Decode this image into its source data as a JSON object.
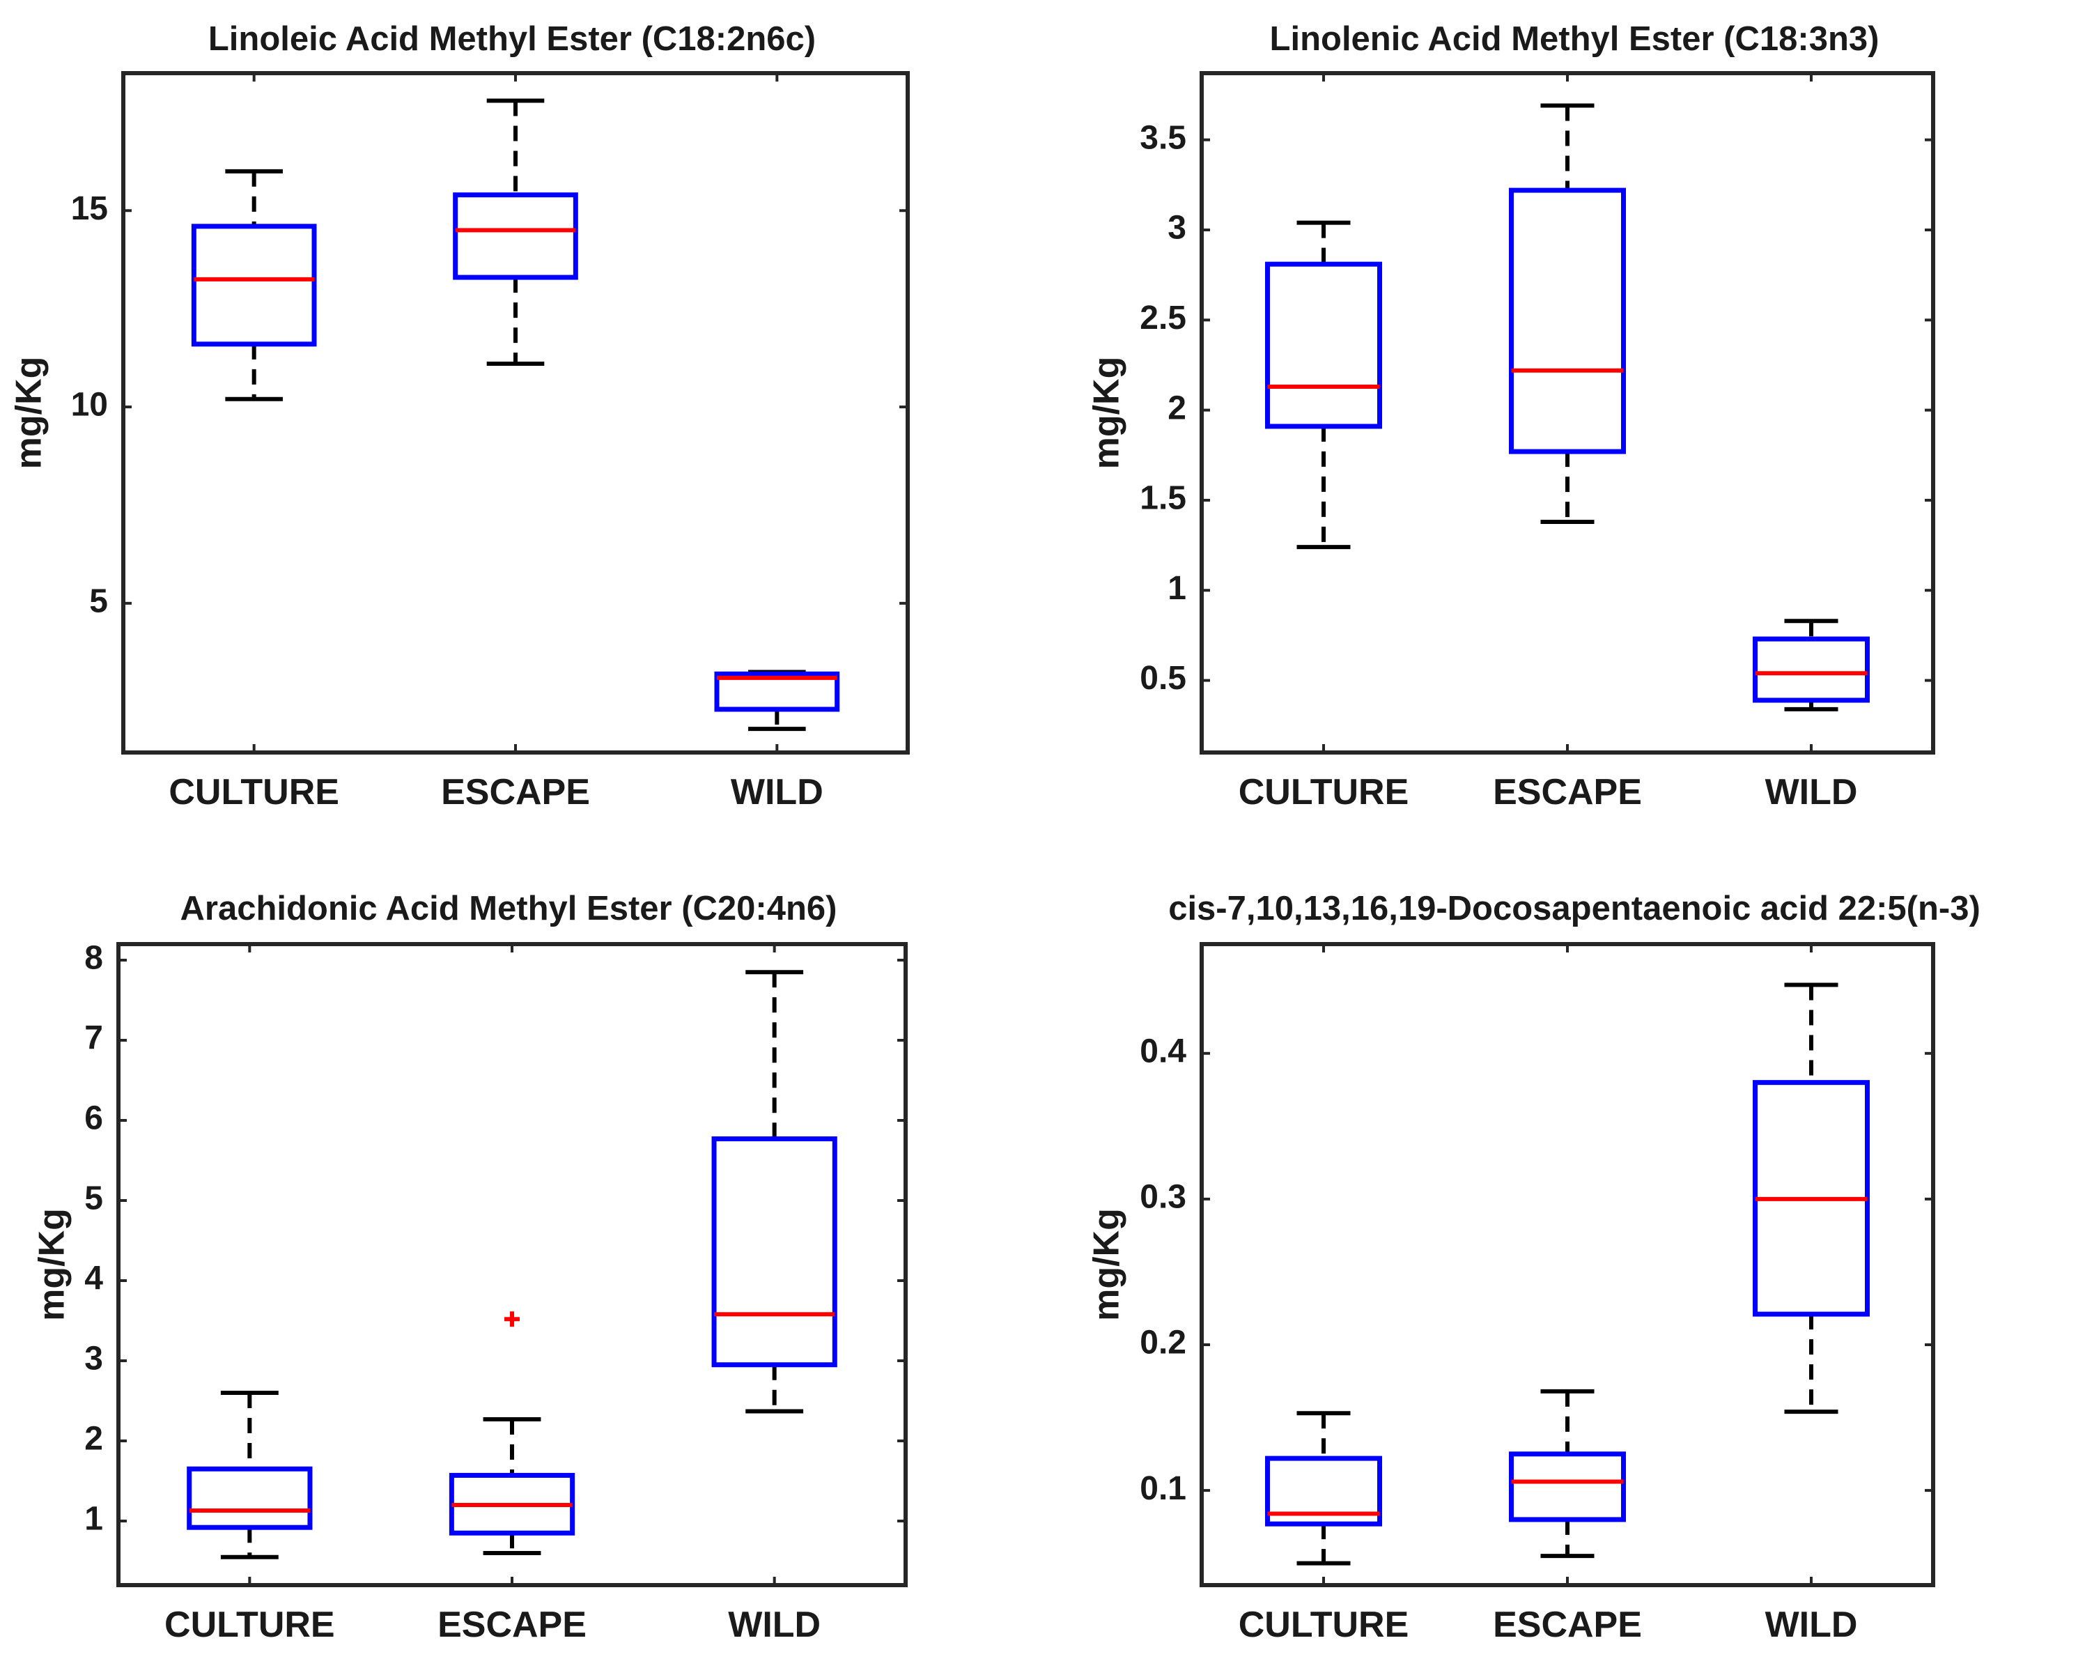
{
  "colors": {
    "box": "#0000ff",
    "median": "#ff0000",
    "whisker": "#000000",
    "axis": "#262626",
    "outlier": "#ff0000"
  },
  "chart_data": [
    {
      "type": "box",
      "title": "Linoleic Acid Methyl Ester (C18:2n6c)",
      "ylabel": "mg/Kg",
      "xlabel": "",
      "ylim": [
        1.2,
        18.5
      ],
      "yticks": [
        5,
        10,
        15
      ],
      "ytick_labels": [
        "5",
        "10",
        "15"
      ],
      "categories": [
        "CULTURE",
        "ESCAPE",
        "WILD"
      ],
      "boxes": [
        {
          "whisker_low": 10.2,
          "q1": 11.6,
          "median": 13.25,
          "q3": 14.6,
          "whisker_high": 16.0,
          "outliers": []
        },
        {
          "whisker_low": 11.1,
          "q1": 13.3,
          "median": 14.5,
          "q3": 15.4,
          "whisker_high": 17.8,
          "outliers": []
        },
        {
          "whisker_low": 1.8,
          "q1": 2.3,
          "median": 3.1,
          "q3": 3.2,
          "whisker_high": 3.25,
          "outliers": []
        }
      ]
    },
    {
      "type": "box",
      "title": "Linolenic Acid Methyl Ester (C18:3n3)",
      "ylabel": "mg/Kg",
      "xlabel": "",
      "ylim": [
        0.1,
        3.87
      ],
      "yticks": [
        0.5,
        1,
        1.5,
        2,
        2.5,
        3,
        3.5
      ],
      "ytick_labels": [
        "0.5",
        "1",
        "1.5",
        "2",
        "2.5",
        "3",
        "3.5"
      ],
      "categories": [
        "CULTURE",
        "ESCAPE",
        "WILD"
      ],
      "boxes": [
        {
          "whisker_low": 1.24,
          "q1": 1.91,
          "median": 2.13,
          "q3": 2.81,
          "whisker_high": 3.04,
          "outliers": []
        },
        {
          "whisker_low": 1.38,
          "q1": 1.77,
          "median": 2.22,
          "q3": 3.22,
          "whisker_high": 3.69,
          "outliers": []
        },
        {
          "whisker_low": 0.34,
          "q1": 0.39,
          "median": 0.54,
          "q3": 0.73,
          "whisker_high": 0.83,
          "outliers": []
        }
      ]
    },
    {
      "type": "box",
      "title": "Arachidonic Acid Methyl Ester (C20:4n6)",
      "ylabel": "mg/Kg",
      "xlabel": "",
      "ylim": [
        0.2,
        8.2
      ],
      "yticks": [
        1,
        2,
        3,
        4,
        5,
        6,
        7,
        8
      ],
      "ytick_labels": [
        "1",
        "2",
        "3",
        "4",
        "5",
        "6",
        "7",
        "8"
      ],
      "categories": [
        "CULTURE",
        "ESCAPE",
        "WILD"
      ],
      "boxes": [
        {
          "whisker_low": 0.55,
          "q1": 0.92,
          "median": 1.13,
          "q3": 1.65,
          "whisker_high": 2.6,
          "outliers": []
        },
        {
          "whisker_low": 0.6,
          "q1": 0.85,
          "median": 1.2,
          "q3": 1.57,
          "whisker_high": 2.27,
          "outliers": [
            3.52
          ]
        },
        {
          "whisker_low": 2.37,
          "q1": 2.95,
          "median": 3.58,
          "q3": 5.77,
          "whisker_high": 7.85,
          "outliers": []
        }
      ]
    },
    {
      "type": "box",
      "title": "cis-7,10,13,16,19-Docosapentaenoic acid 22:5(n-3)",
      "ylabel": "mg/Kg",
      "xlabel": "",
      "ylim": [
        0.035,
        0.475
      ],
      "yticks": [
        0.1,
        0.2,
        0.3,
        0.4
      ],
      "ytick_labels": [
        "0.1",
        "0.2",
        "0.3",
        "0.4"
      ],
      "categories": [
        "CULTURE",
        "ESCAPE",
        "WILD"
      ],
      "boxes": [
        {
          "whisker_low": 0.05,
          "q1": 0.077,
          "median": 0.084,
          "q3": 0.122,
          "whisker_high": 0.153,
          "outliers": []
        },
        {
          "whisker_low": 0.055,
          "q1": 0.08,
          "median": 0.106,
          "q3": 0.125,
          "whisker_high": 0.168,
          "outliers": []
        },
        {
          "whisker_low": 0.154,
          "q1": 0.221,
          "median": 0.3,
          "q3": 0.38,
          "whisker_high": 0.447,
          "outliers": []
        }
      ]
    }
  ]
}
